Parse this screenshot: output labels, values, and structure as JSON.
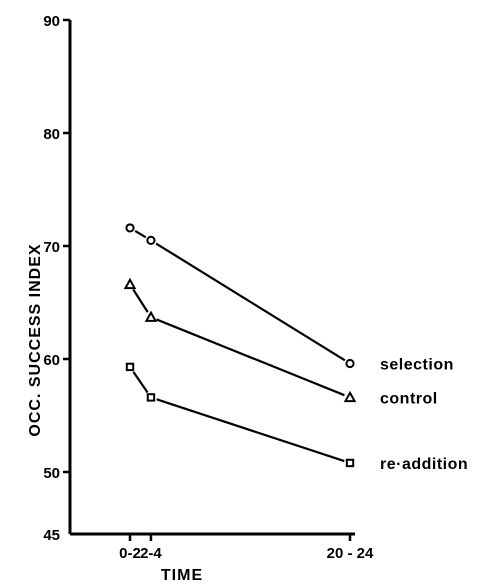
{
  "chart_data": {
    "type": "line",
    "title": "",
    "xlabel": "TIME",
    "ylabel": "OCC. SUCCESS INDEX",
    "categories": [
      "0-2",
      "2-4",
      "20 - 24"
    ],
    "x": [
      1,
      3,
      22
    ],
    "ylim": [
      45,
      90
    ],
    "yticks": [
      45,
      50,
      60,
      70,
      80,
      90
    ],
    "grid": false,
    "legend": "direct labels at line ends (right)",
    "series": [
      {
        "name": "selection",
        "marker": "circle",
        "values": [
          71.6,
          70.5,
          59.6
        ]
      },
      {
        "name": "control",
        "marker": "triangle",
        "values": [
          66.6,
          63.7,
          56.6
        ]
      },
      {
        "name": "re·addition",
        "marker": "square",
        "values": [
          59.3,
          56.6,
          50.8
        ]
      }
    ]
  }
}
